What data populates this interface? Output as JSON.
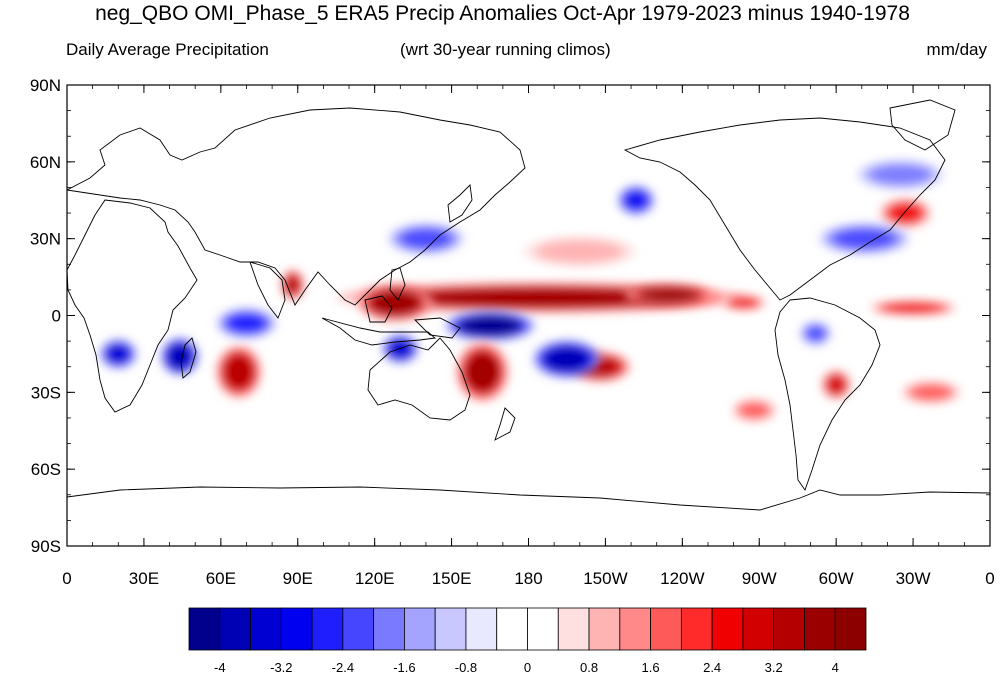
{
  "title": "neg_QBO OMI_Phase_5 ERA5 Precip Anomalies Oct-Apr 1979-2023 minus 1940-1978",
  "subtitle_left": "Daily Average Precipitation",
  "subtitle_center": "(wrt 30-year running climos)",
  "subtitle_right": "mm/day",
  "lat_ticks": [
    {
      "lat": 90,
      "label": "90N"
    },
    {
      "lat": 60,
      "label": "60N"
    },
    {
      "lat": 30,
      "label": "30N"
    },
    {
      "lat": 0,
      "label": "0"
    },
    {
      "lat": -30,
      "label": "30S"
    },
    {
      "lat": -60,
      "label": "60S"
    },
    {
      "lat": -90,
      "label": "90S"
    }
  ],
  "lon_ticks": [
    {
      "lon": 0,
      "label": "0"
    },
    {
      "lon": 30,
      "label": "30E"
    },
    {
      "lon": 60,
      "label": "60E"
    },
    {
      "lon": 90,
      "label": "90E"
    },
    {
      "lon": 120,
      "label": "120E"
    },
    {
      "lon": 150,
      "label": "150E"
    },
    {
      "lon": 180,
      "label": "180"
    },
    {
      "lon": 210,
      "label": "150W"
    },
    {
      "lon": 240,
      "label": "120W"
    },
    {
      "lon": 270,
      "label": "90W"
    },
    {
      "lon": 300,
      "label": "60W"
    },
    {
      "lon": 330,
      "label": "30W"
    },
    {
      "lon": 360,
      "label": "0"
    }
  ],
  "colorbar": {
    "colors": [
      "#00008c",
      "#0000b4",
      "#0000d2",
      "#0000f0",
      "#1e1eff",
      "#4646ff",
      "#7a7aff",
      "#a4a4ff",
      "#c8c8ff",
      "#e8e8ff",
      "#ffffff",
      "#ffffff",
      "#ffe0e0",
      "#ffb4b4",
      "#ff8888",
      "#ff5a5a",
      "#ff2a2a",
      "#f00000",
      "#d20000",
      "#b40000",
      "#9a0000",
      "#8c0000"
    ],
    "labels": [
      {
        "index": 1,
        "text": "-4"
      },
      {
        "index": 3,
        "text": "-3.2"
      },
      {
        "index": 5,
        "text": "-2.4"
      },
      {
        "index": 7,
        "text": "-1.6"
      },
      {
        "index": 9,
        "text": "-0.8"
      },
      {
        "index": 11,
        "text": "0"
      },
      {
        "index": 13,
        "text": "0.8"
      },
      {
        "index": 15,
        "text": "1.6"
      },
      {
        "index": 17,
        "text": "2.4"
      },
      {
        "index": 19,
        "text": "3.2"
      },
      {
        "index": 21,
        "text": "4"
      }
    ]
  },
  "anomaly_features": [
    {
      "name": "itcz-pacific-wet",
      "lon": 185,
      "lat": 7,
      "rx": 55,
      "ry": 4,
      "value": 3.6
    },
    {
      "name": "e-pacific-wet",
      "lon": 235,
      "lat": 8,
      "rx": 12,
      "ry": 3,
      "value": 3.8
    },
    {
      "name": "maritime-continent-wet",
      "lon": 128,
      "lat": 5,
      "rx": 10,
      "ry": 5,
      "value": 3.8
    },
    {
      "name": "c-pacific-dry",
      "lon": 165,
      "lat": -4,
      "rx": 12,
      "ry": 4,
      "value": -4.0
    },
    {
      "name": "spcz-wet",
      "lon": 162,
      "lat": -22,
      "rx": 7,
      "ry": 8,
      "value": 3.6
    },
    {
      "name": "s-pacific-wet",
      "lon": 208,
      "lat": -20,
      "rx": 8,
      "ry": 4,
      "value": 3.4
    },
    {
      "name": "s-pacific-dry",
      "lon": 195,
      "lat": -17,
      "rx": 9,
      "ry": 5,
      "value": -3.6
    },
    {
      "name": "s-indian-wet",
      "lon": 67,
      "lat": -22,
      "rx": 6,
      "ry": 7,
      "value": 3.2
    },
    {
      "name": "mozambique-dry",
      "lon": 44,
      "lat": -16,
      "rx": 5,
      "ry": 5,
      "value": -3.4
    },
    {
      "name": "s-africa-dry",
      "lon": 20,
      "lat": -15,
      "rx": 5,
      "ry": 4,
      "value": -3.0
    },
    {
      "name": "bay-bengal-wet",
      "lon": 88,
      "lat": 12,
      "rx": 3,
      "ry": 4,
      "value": 3.4
    },
    {
      "name": "indian-ocean-dry",
      "lon": 70,
      "lat": -3,
      "rx": 8,
      "ry": 4,
      "value": -2.2
    },
    {
      "name": "timor-dry",
      "lon": 130,
      "lat": -13,
      "rx": 5,
      "ry": 4,
      "value": -3.2
    },
    {
      "name": "east-asia-dry",
      "lon": 140,
      "lat": 30,
      "rx": 10,
      "ry": 4,
      "value": -1.8
    },
    {
      "name": "gulf-alaska-dry",
      "lon": 222,
      "lat": 45,
      "rx": 5,
      "ry": 4,
      "value": -2.6
    },
    {
      "name": "s-brazil-wet",
      "lon": 300,
      "lat": -27,
      "rx": 4,
      "ry": 4,
      "value": 3.0
    },
    {
      "name": "n-atlantic-wet",
      "lon": 327,
      "lat": 40,
      "rx": 7,
      "ry": 4,
      "value": 2.6
    },
    {
      "name": "n-atlantic-dry",
      "lon": 311,
      "lat": 30,
      "rx": 12,
      "ry": 4,
      "value": -1.8
    },
    {
      "name": "s-america-dry",
      "lon": 292,
      "lat": -7,
      "rx": 4,
      "ry": 3,
      "value": -2.0
    },
    {
      "name": "equatorial-atlantic-wet",
      "lon": 330,
      "lat": 3,
      "rx": 12,
      "ry": 2,
      "value": 2.8
    },
    {
      "name": "e-pacific-cold-tongue-wet",
      "lon": 264,
      "lat": 5,
      "rx": 6,
      "ry": 2,
      "value": 2.6
    },
    {
      "name": "s-atlantic-wet",
      "lon": 337,
      "lat": -30,
      "rx": 8,
      "ry": 3,
      "value": 1.6
    },
    {
      "name": "se-pacific-wet",
      "lon": 268,
      "lat": -37,
      "rx": 6,
      "ry": 3,
      "value": 1.6
    },
    {
      "name": "n-atlantic-60n-dry",
      "lon": 325,
      "lat": 55,
      "rx": 12,
      "ry": 4,
      "value": -1.4
    },
    {
      "name": "n-pacific-wet",
      "lon": 200,
      "lat": 25,
      "rx": 15,
      "ry": 4,
      "value": 1.2
    }
  ]
}
